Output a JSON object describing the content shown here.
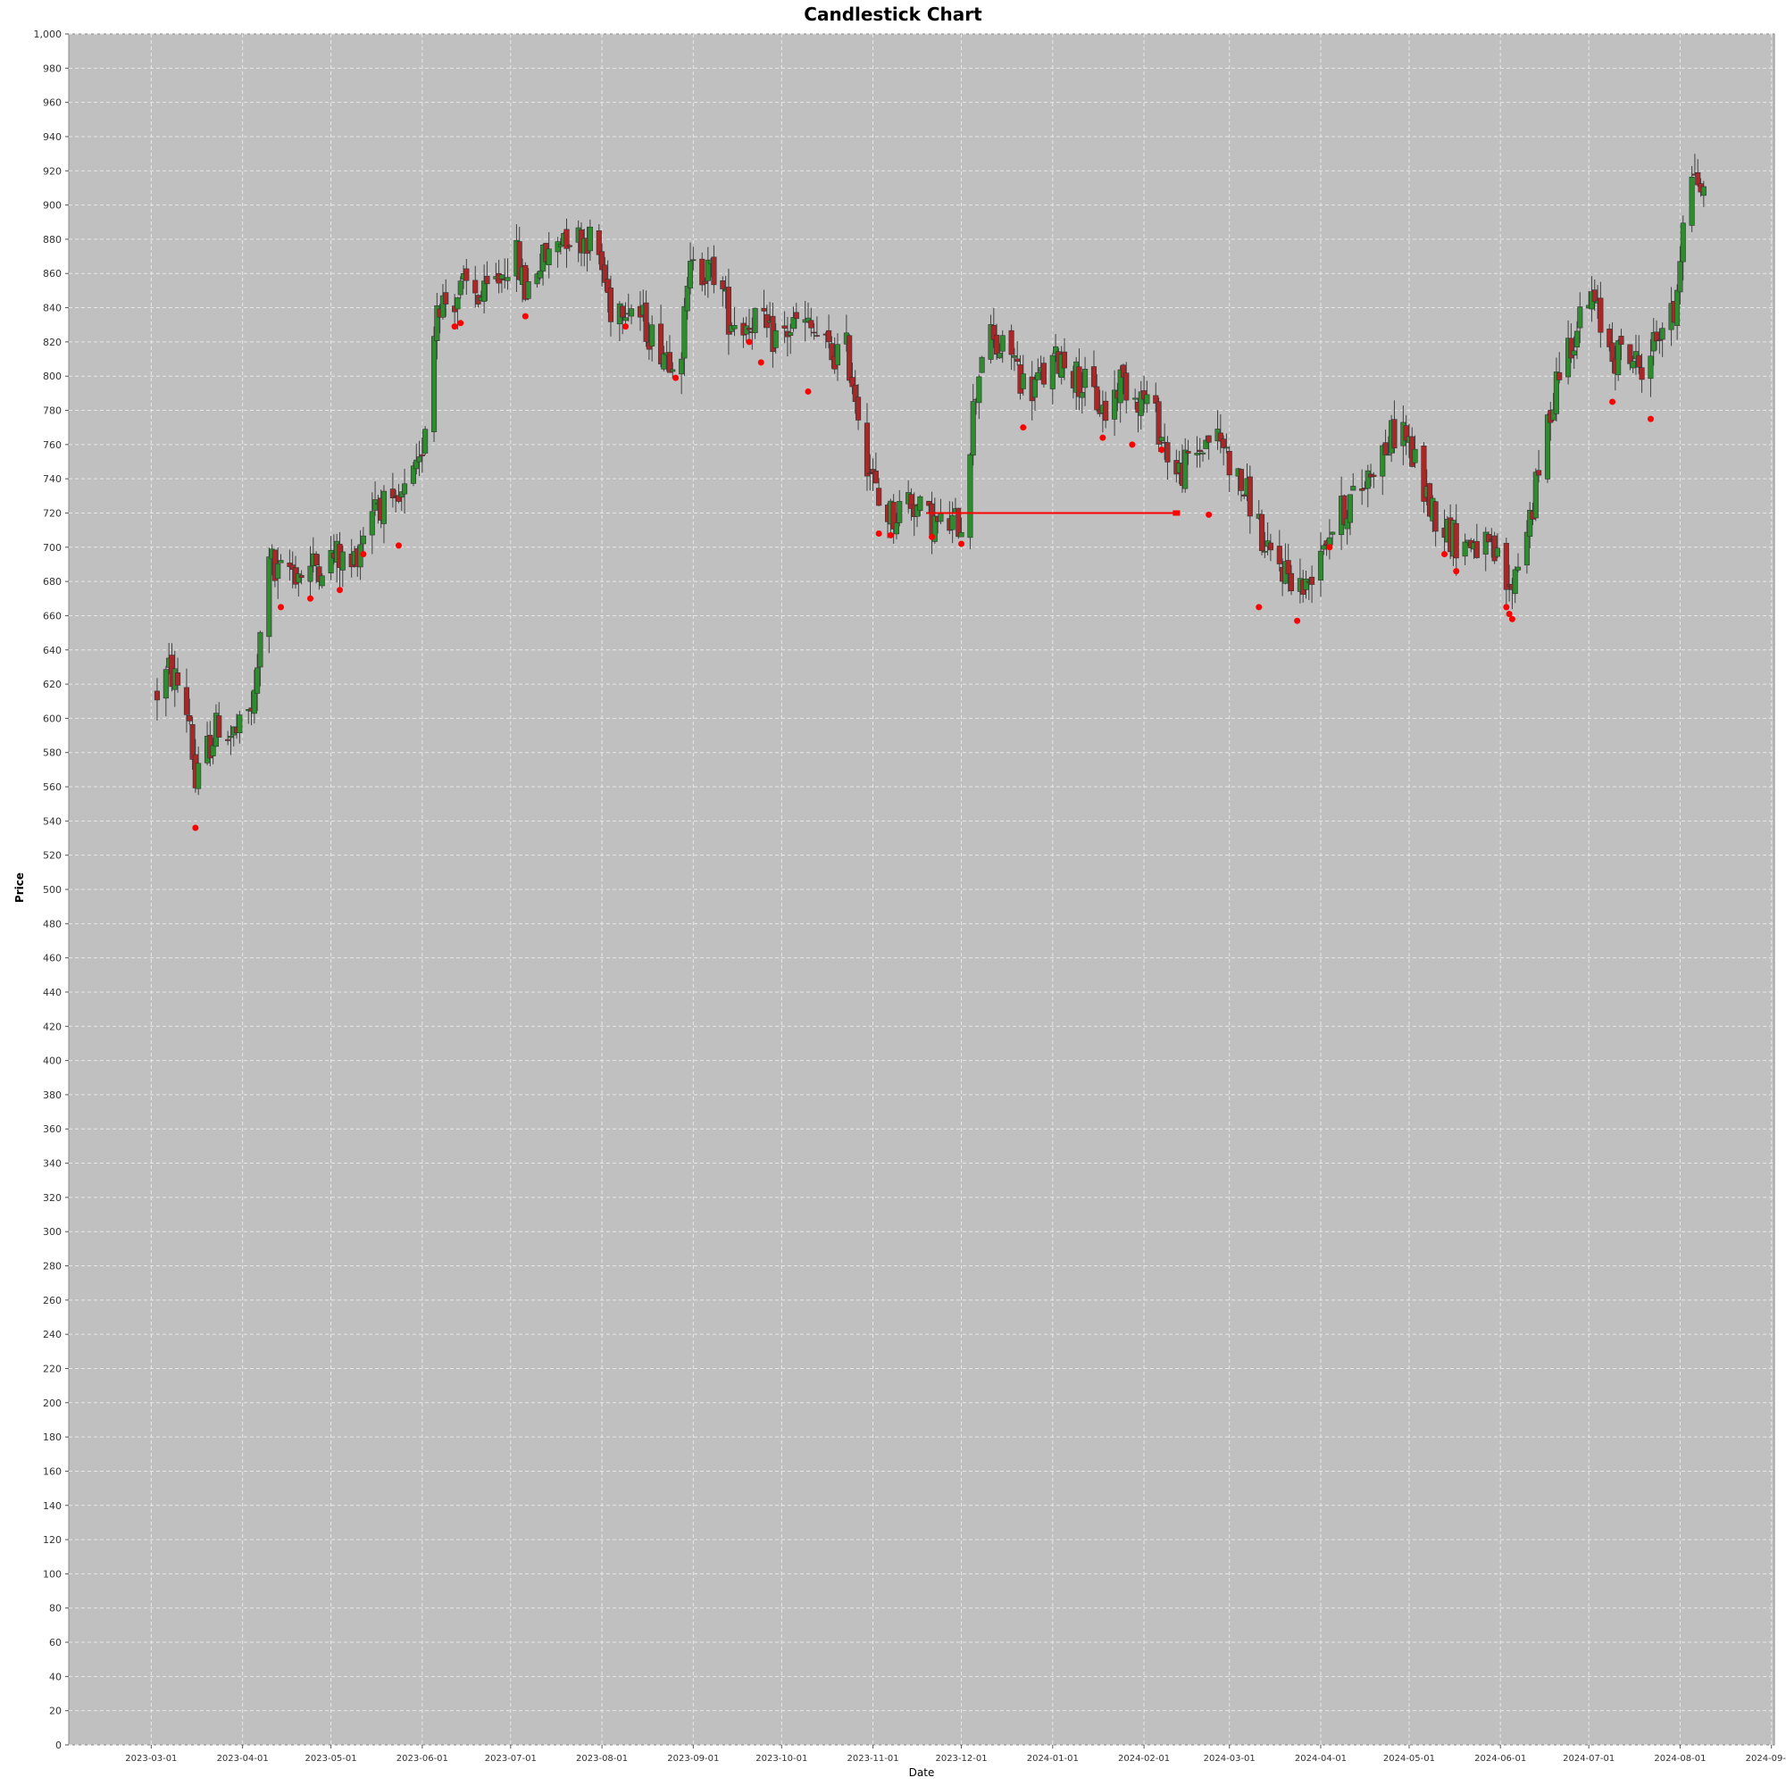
{
  "chart_data": {
    "type": "candlestick",
    "title": "Candlestick Chart",
    "xlabel": "Date",
    "ylabel": "Price",
    "ylim": [
      0,
      1000
    ],
    "y_tick_step": 20,
    "xlim": [
      "2023-02-01",
      "2024-09-02"
    ],
    "x_ticks": [
      "2023-03-01",
      "2023-04-01",
      "2023-05-01",
      "2023-06-01",
      "2023-07-01",
      "2023-08-01",
      "2023-09-01",
      "2023-10-01",
      "2023-11-01",
      "2023-12-01",
      "2024-01-01",
      "2024-02-01",
      "2024-03-01",
      "2024-04-01",
      "2024-05-01",
      "2024-06-01",
      "2024-07-01",
      "2024-08-01",
      "2024-09-01"
    ],
    "grid": true,
    "colors": {
      "plot_background": "#c0c0c0",
      "up": "#2e8b2e",
      "down": "#a82828",
      "wick": "#404040",
      "marker": "#ff0000",
      "gridline": "#e8e8e8"
    },
    "path_points": [
      [
        "2023-03-03",
        615
      ],
      [
        "2023-03-07",
        628
      ],
      [
        "2023-03-10",
        620
      ],
      [
        "2023-03-14",
        600
      ],
      [
        "2023-03-16",
        560
      ],
      [
        "2023-03-20",
        582
      ],
      [
        "2023-03-24",
        597
      ],
      [
        "2023-03-28",
        590
      ],
      [
        "2023-03-31",
        592
      ],
      [
        "2023-04-05",
        610
      ],
      [
        "2023-04-10",
        700
      ],
      [
        "2023-04-12",
        682
      ],
      [
        "2023-04-17",
        688
      ],
      [
        "2023-04-21",
        685
      ],
      [
        "2023-04-26",
        690
      ],
      [
        "2023-05-03",
        695
      ],
      [
        "2023-05-08",
        688
      ],
      [
        "2023-05-12",
        710
      ],
      [
        "2023-05-16",
        730
      ],
      [
        "2023-05-22",
        718
      ],
      [
        "2023-05-26",
        730
      ],
      [
        "2023-05-31",
        745
      ],
      [
        "2023-06-03",
        790
      ],
      [
        "2023-06-06",
        845
      ],
      [
        "2023-06-10",
        843
      ],
      [
        "2023-06-16",
        852
      ],
      [
        "2023-06-22",
        845
      ],
      [
        "2023-06-28",
        860
      ],
      [
        "2023-07-02",
        875
      ],
      [
        "2023-07-06",
        850
      ],
      [
        "2023-07-10",
        865
      ],
      [
        "2023-07-14",
        870
      ],
      [
        "2023-07-19",
        885
      ],
      [
        "2023-07-23",
        880
      ],
      [
        "2023-07-27",
        882
      ],
      [
        "2023-07-31",
        870
      ],
      [
        "2023-08-04",
        840
      ],
      [
        "2023-08-09",
        845
      ],
      [
        "2023-08-14",
        835
      ],
      [
        "2023-08-19",
        820
      ],
      [
        "2023-08-24",
        813
      ],
      [
        "2023-08-28",
        818
      ],
      [
        "2023-09-01",
        875
      ],
      [
        "2023-09-05",
        860
      ],
      [
        "2023-09-09",
        862
      ],
      [
        "2023-09-13",
        835
      ],
      [
        "2023-09-18",
        830
      ],
      [
        "2023-09-22",
        835
      ],
      [
        "2023-09-27",
        822
      ],
      [
        "2023-10-02",
        825
      ],
      [
        "2023-10-07",
        832
      ],
      [
        "2023-10-12",
        825
      ],
      [
        "2023-10-18",
        812
      ],
      [
        "2023-10-23",
        815
      ],
      [
        "2023-10-26",
        790
      ],
      [
        "2023-10-30",
        752
      ],
      [
        "2023-11-03",
        725
      ],
      [
        "2023-11-08",
        718
      ],
      [
        "2023-11-13",
        730
      ],
      [
        "2023-11-18",
        718
      ],
      [
        "2023-11-24",
        712
      ],
      [
        "2023-12-01",
        715
      ],
      [
        "2023-12-05",
        780
      ],
      [
        "2023-12-09",
        828
      ],
      [
        "2023-12-13",
        815
      ],
      [
        "2023-12-18",
        815
      ],
      [
        "2023-12-23",
        790
      ],
      [
        "2023-12-29",
        800
      ],
      [
        "2024-01-04",
        812
      ],
      [
        "2024-01-09",
        800
      ],
      [
        "2024-01-14",
        790
      ],
      [
        "2024-01-19",
        778
      ],
      [
        "2024-01-24",
        798
      ],
      [
        "2024-01-29",
        790
      ],
      [
        "2024-02-03",
        785
      ],
      [
        "2024-02-08",
        760
      ],
      [
        "2024-02-12",
        742
      ],
      [
        "2024-02-18",
        752
      ],
      [
        "2024-02-23",
        765
      ],
      [
        "2024-02-28",
        760
      ],
      [
        "2024-03-04",
        738
      ],
      [
        "2024-03-10",
        722
      ],
      [
        "2024-03-13",
        695
      ],
      [
        "2024-03-18",
        690
      ],
      [
        "2024-03-23",
        682
      ],
      [
        "2024-03-27",
        675
      ],
      [
        "2024-03-31",
        700
      ],
      [
        "2024-04-05",
        712
      ],
      [
        "2024-04-10",
        725
      ],
      [
        "2024-04-15",
        735
      ],
      [
        "2024-04-19",
        750
      ],
      [
        "2024-04-24",
        760
      ],
      [
        "2024-04-28",
        775
      ],
      [
        "2024-05-03",
        748
      ],
      [
        "2024-05-08",
        725
      ],
      [
        "2024-05-13",
        712
      ],
      [
        "2024-05-18",
        702
      ],
      [
        "2024-05-23",
        703
      ],
      [
        "2024-05-28",
        697
      ],
      [
        "2024-06-01",
        690
      ],
      [
        "2024-06-04",
        672
      ],
      [
        "2024-06-08",
        700
      ],
      [
        "2024-06-12",
        725
      ],
      [
        "2024-06-16",
        760
      ],
      [
        "2024-06-20",
        800
      ],
      [
        "2024-06-24",
        818
      ],
      [
        "2024-06-28",
        832
      ],
      [
        "2024-07-02",
        845
      ],
      [
        "2024-07-06",
        825
      ],
      [
        "2024-07-10",
        812
      ],
      [
        "2024-07-14",
        815
      ],
      [
        "2024-07-18",
        805
      ],
      [
        "2024-07-22",
        815
      ],
      [
        "2024-07-26",
        830
      ],
      [
        "2024-07-30",
        835
      ],
      [
        "2024-08-02",
        895
      ],
      [
        "2024-08-06",
        920
      ],
      [
        "2024-08-09",
        905
      ],
      [
        "2024-08-12",
        930
      ]
    ],
    "markers": [
      [
        "2023-03-16",
        536
      ],
      [
        "2023-04-14",
        665
      ],
      [
        "2023-04-24",
        670
      ],
      [
        "2023-05-04",
        675
      ],
      [
        "2023-05-12",
        696
      ],
      [
        "2023-05-24",
        701
      ],
      [
        "2023-06-12",
        829
      ],
      [
        "2023-06-14",
        831
      ],
      [
        "2023-07-06",
        835
      ],
      [
        "2023-08-09",
        829
      ],
      [
        "2023-08-26",
        799
      ],
      [
        "2023-09-20",
        820
      ],
      [
        "2023-09-24",
        808
      ],
      [
        "2023-10-10",
        791
      ],
      [
        "2023-11-03",
        708
      ],
      [
        "2023-11-07",
        707
      ],
      [
        "2023-11-21",
        706
      ],
      [
        "2023-12-01",
        702
      ],
      [
        "2023-12-22",
        770
      ],
      [
        "2024-01-18",
        764
      ],
      [
        "2024-01-28",
        760
      ],
      [
        "2024-02-07",
        757
      ],
      [
        "2024-02-23",
        719
      ],
      [
        "2024-03-11",
        665
      ],
      [
        "2024-03-24",
        657
      ],
      [
        "2024-04-04",
        700
      ],
      [
        "2024-05-13",
        696
      ],
      [
        "2024-05-17",
        686
      ],
      [
        "2024-06-03",
        665
      ],
      [
        "2024-06-04",
        661
      ],
      [
        "2024-06-05",
        658
      ],
      [
        "2024-07-09",
        785
      ],
      [
        "2024-07-22",
        775
      ]
    ],
    "line_annotation": {
      "from": [
        "2023-11-19",
        720
      ],
      "to": [
        "2024-02-12",
        720
      ]
    },
    "highlight_label": [
      "2024-02-12",
      720
    ]
  }
}
